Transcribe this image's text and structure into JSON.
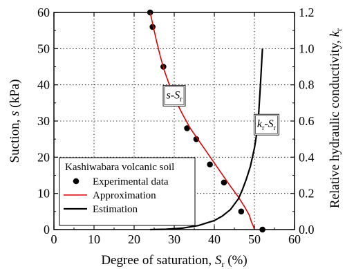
{
  "chart_data": {
    "type": "scatter",
    "xlabel": "Degree of saturation, S_r (%)",
    "ylabel_left": "Suction, s (kPa)",
    "ylabel_right": "Relative hydraulic conductivity, k_r",
    "xlim": [
      0,
      60
    ],
    "ylim_left": [
      0,
      60
    ],
    "ylim_right": [
      0.0,
      1.2
    ],
    "x_ticks": [
      0,
      10,
      20,
      30,
      40,
      50,
      60
    ],
    "y_left_ticks": [
      0,
      10,
      20,
      30,
      40,
      50,
      60
    ],
    "y_right_ticks": [
      "0.0",
      "0.2",
      "0.4",
      "0.6",
      "0.8",
      "1.0",
      "1.2"
    ],
    "grid": "dotted",
    "legend": {
      "title": "Kashiwabara volcanic soil",
      "position": "bottom-left",
      "entries": [
        "Experimental data",
        "Approximation",
        "Estimation"
      ]
    },
    "annotations": [
      {
        "main": "s",
        "dash": "-",
        "var": "S",
        "sub": "r",
        "at": [
          30,
          37
        ]
      },
      {
        "main": "k",
        "mainsub": "r",
        "dash": "-",
        "var": "S",
        "sub": "r",
        "at": [
          53,
          29
        ]
      }
    ],
    "series": [
      {
        "name": "Experimental data",
        "kind": "points",
        "axis": "left",
        "color": "#000000",
        "x": [
          24.0,
          24.6,
          27.3,
          33.2,
          35.5,
          38.9,
          42.4,
          46.7,
          52.0
        ],
        "y": [
          60,
          56,
          45,
          28,
          25,
          18,
          13,
          5,
          0
        ]
      },
      {
        "name": "Approximation",
        "kind": "line",
        "axis": "left",
        "color": "#e00000",
        "x": [
          24.0,
          24.8,
          25.6,
          26.5,
          27.5,
          28.8,
          30.2,
          32.0,
          34.0,
          36.5,
          39.0,
          41.5,
          44.0,
          46.0,
          47.7,
          48.7,
          49.3,
          49.7,
          50.0
        ],
        "y": [
          60,
          56,
          52,
          48,
          44,
          40,
          36,
          32,
          28,
          24,
          20,
          16,
          12,
          9,
          6,
          4,
          2,
          1,
          0
        ]
      },
      {
        "name": "Estimation",
        "kind": "line",
        "axis": "right",
        "color": "#000000",
        "x": [
          24,
          28,
          32,
          36,
          40,
          42,
          44,
          45,
          46,
          47,
          48,
          49,
          50,
          50.5,
          51,
          51.5,
          52
        ],
        "y": [
          0.0,
          0.002,
          0.008,
          0.022,
          0.05,
          0.075,
          0.11,
          0.14,
          0.17,
          0.22,
          0.28,
          0.35,
          0.45,
          0.52,
          0.62,
          0.8,
          1.0
        ]
      }
    ]
  }
}
